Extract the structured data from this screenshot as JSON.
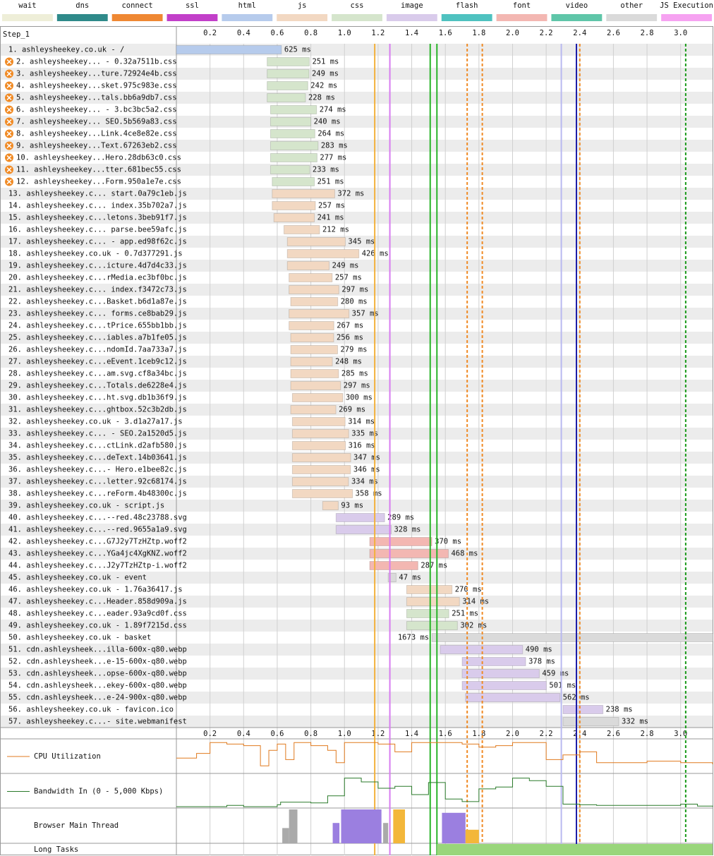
{
  "chart_data": {
    "type": "waterfall",
    "step": "Step_1",
    "legend": [
      {
        "name": "wait",
        "color": "#eeeed8"
      },
      {
        "name": "dns",
        "color": "#2f8a8a"
      },
      {
        "name": "connect",
        "color": "#ef8833"
      },
      {
        "name": "ssl",
        "color": "#c23fc9"
      },
      {
        "name": "html",
        "color": "#b6cbec"
      },
      {
        "name": "js",
        "color": "#f2d8c2"
      },
      {
        "name": "css",
        "color": "#d5e5cc"
      },
      {
        "name": "image",
        "color": "#d9cbeb"
      },
      {
        "name": "flash",
        "color": "#4fc2c0"
      },
      {
        "name": "font",
        "color": "#f3b7b2"
      },
      {
        "name": "video",
        "color": "#5fc6a9"
      },
      {
        "name": "other",
        "color": "#dadada"
      },
      {
        "name": "JS Execution",
        "color": "#f6a2f1"
      }
    ],
    "xlim": [
      0,
      3.19
    ],
    "xticks": [
      0.2,
      0.4,
      0.6,
      0.8,
      {
        "value": 1,
        "label": "1.0"
      },
      1.2,
      1.4,
      1.6,
      1.8,
      {
        "value": 2,
        "label": "2.0"
      },
      2.2,
      2.4,
      2.6,
      2.8,
      {
        "value": 3,
        "label": "3.0"
      }
    ],
    "requests": [
      {
        "label": "1. ashleysheekey.co.uk - /",
        "type": "html",
        "start": 0,
        "duration": 625,
        "time_label": "625 ms"
      },
      {
        "label": "2. ashleysheekey... - 0.32a7511b.css",
        "type": "css",
        "start": 0.54,
        "duration": 251,
        "time_label": "251 ms",
        "icon": true
      },
      {
        "label": "3. ashleysheekey...ture.72924e4b.css",
        "type": "css",
        "start": 0.54,
        "duration": 249,
        "time_label": "249 ms",
        "icon": true
      },
      {
        "label": "4. ashleysheekey...sket.975c983e.css",
        "type": "css",
        "start": 0.54,
        "duration": 242,
        "time_label": "242 ms",
        "icon": true
      },
      {
        "label": "5. ashleysheekey...tals.bb6a9db7.css",
        "type": "css",
        "start": 0.54,
        "duration": 228,
        "time_label": "228 ms",
        "icon": true
      },
      {
        "label": "6. ashleysheekey... - 3.bc3bc5a2.css",
        "type": "css",
        "start": 0.56,
        "duration": 274,
        "time_label": "274 ms",
        "icon": true
      },
      {
        "label": "7. ashleysheekey... SEO.5b569a83.css",
        "type": "css",
        "start": 0.56,
        "duration": 240,
        "time_label": "240 ms",
        "icon": true
      },
      {
        "label": "8. ashleysheekey...Link.4ce8e82e.css",
        "type": "css",
        "start": 0.56,
        "duration": 264,
        "time_label": "264 ms",
        "icon": true
      },
      {
        "label": "9. ashleysheekey...Text.67263eb2.css",
        "type": "css",
        "start": 0.56,
        "duration": 283,
        "time_label": "283 ms",
        "icon": true
      },
      {
        "label": "10. ashleysheekey...Hero.28db63c0.css",
        "type": "css",
        "start": 0.56,
        "duration": 277,
        "time_label": "277 ms",
        "icon": true
      },
      {
        "label": "11. ashleysheekey...tter.681bec55.css",
        "type": "css",
        "start": 0.56,
        "duration": 233,
        "time_label": "233 ms",
        "icon": true
      },
      {
        "label": "12. ashleysheekey...Form.950a1e7e.css",
        "type": "css",
        "start": 0.57,
        "duration": 251,
        "time_label": "251 ms",
        "icon": true
      },
      {
        "label": "13. ashleysheekey.c... start.0a79c1eb.js",
        "type": "js",
        "start": 0.57,
        "duration": 372,
        "time_label": "372 ms"
      },
      {
        "label": "14. ashleysheekey.c... index.35b702a7.js",
        "type": "js",
        "start": 0.57,
        "duration": 257,
        "time_label": "257 ms"
      },
      {
        "label": "15. ashleysheekey.c...letons.3beb91f7.js",
        "type": "js",
        "start": 0.58,
        "duration": 241,
        "time_label": "241 ms"
      },
      {
        "label": "16. ashleysheekey.c... parse.bee59afc.js",
        "type": "js",
        "start": 0.64,
        "duration": 212,
        "time_label": "212 ms"
      },
      {
        "label": "17. ashleysheekey.c... - app.ed98f62c.js",
        "type": "js",
        "start": 0.66,
        "duration": 345,
        "time_label": "345 ms"
      },
      {
        "label": "18. ashleysheekey.co.uk - 0.7d377291.js",
        "type": "js",
        "start": 0.66,
        "duration": 426,
        "time_label": "426 ms"
      },
      {
        "label": "19. ashleysheekey.c...icture.4d7d4c33.js",
        "type": "js",
        "start": 0.66,
        "duration": 249,
        "time_label": "249 ms"
      },
      {
        "label": "20. ashleysheekey.c...rMedia.ec3bf0bc.js",
        "type": "js",
        "start": 0.67,
        "duration": 257,
        "time_label": "257 ms"
      },
      {
        "label": "21. ashleysheekey.c... index.f3472c73.js",
        "type": "js",
        "start": 0.67,
        "duration": 297,
        "time_label": "297 ms"
      },
      {
        "label": "22. ashleysheekey.c...Basket.b6d1a87e.js",
        "type": "js",
        "start": 0.68,
        "duration": 280,
        "time_label": "280 ms"
      },
      {
        "label": "23. ashleysheekey.c... forms.ce8bab29.js",
        "type": "js",
        "start": 0.67,
        "duration": 357,
        "time_label": "357 ms"
      },
      {
        "label": "24. ashleysheekey.c...tPrice.655bb1bb.js",
        "type": "js",
        "start": 0.67,
        "duration": 267,
        "time_label": "267 ms"
      },
      {
        "label": "25. ashleysheekey.c...iables.a7b1fe05.js",
        "type": "js",
        "start": 0.68,
        "duration": 256,
        "time_label": "256 ms"
      },
      {
        "label": "26. ashleysheekey.c...ndomId.7aa733a7.js",
        "type": "js",
        "start": 0.68,
        "duration": 279,
        "time_label": "279 ms"
      },
      {
        "label": "27. ashleysheekey.c...eEvent.1ceb9c12.js",
        "type": "js",
        "start": 0.68,
        "duration": 248,
        "time_label": "248 ms"
      },
      {
        "label": "28. ashleysheekey.c...am.svg.cf8a34bc.js",
        "type": "js",
        "start": 0.68,
        "duration": 285,
        "time_label": "285 ms"
      },
      {
        "label": "29. ashleysheekey.c...Totals.de6228e4.js",
        "type": "js",
        "start": 0.68,
        "duration": 297,
        "time_label": "297 ms"
      },
      {
        "label": "30. ashleysheekey.c...ht.svg.db1b36f9.js",
        "type": "js",
        "start": 0.69,
        "duration": 300,
        "time_label": "300 ms"
      },
      {
        "label": "31. ashleysheekey.c...ghtbox.52c3b2db.js",
        "type": "js",
        "start": 0.68,
        "duration": 269,
        "time_label": "269 ms"
      },
      {
        "label": "32. ashleysheekey.co.uk - 3.d1a27a17.js",
        "type": "js",
        "start": 0.69,
        "duration": 314,
        "time_label": "314 ms"
      },
      {
        "label": "33. ashleysheekey.c... - SEO.2a1520d5.js",
        "type": "js",
        "start": 0.69,
        "duration": 335,
        "time_label": "335 ms"
      },
      {
        "label": "34. ashleysheekey.c...ctLink.d2afb580.js",
        "type": "js",
        "start": 0.69,
        "duration": 316,
        "time_label": "316 ms"
      },
      {
        "label": "35. ashleysheekey.c...deText.14b03641.js",
        "type": "js",
        "start": 0.69,
        "duration": 347,
        "time_label": "347 ms"
      },
      {
        "label": "36. ashleysheekey.c...- Hero.e1bee82c.js",
        "type": "js",
        "start": 0.69,
        "duration": 346,
        "time_label": "346 ms"
      },
      {
        "label": "37. ashleysheekey.c...letter.92c68174.js",
        "type": "js",
        "start": 0.69,
        "duration": 334,
        "time_label": "334 ms"
      },
      {
        "label": "38. ashleysheekey.c...reForm.4b48300c.js",
        "type": "js",
        "start": 0.69,
        "duration": 358,
        "time_label": "358 ms"
      },
      {
        "label": "39. ashleysheekey.co.uk - script.js",
        "type": "js",
        "start": 0.87,
        "duration": 93,
        "time_label": "93 ms"
      },
      {
        "label": "40. ashleysheekey.c...--red.48c23788.svg",
        "type": "image",
        "start": 0.95,
        "duration": 289,
        "time_label": "289 ms"
      },
      {
        "label": "41. ashleysheekey.c...--red.9655a1a9.svg",
        "type": "image",
        "start": 0.95,
        "duration": 328,
        "time_label": "328 ms"
      },
      {
        "label": "42. ashleysheekey.c...G7J2y7TzHZtp.woff2",
        "type": "font",
        "start": 1.15,
        "duration": 370,
        "time_label": "370 ms"
      },
      {
        "label": "43. ashleysheekey.c...YGa4jc4XgKNZ.woff2",
        "type": "font",
        "start": 1.15,
        "duration": 468,
        "time_label": "468 ms"
      },
      {
        "label": "44. ashleysheekey.c...J2y7TzHZtp-i.woff2",
        "type": "font",
        "start": 1.15,
        "duration": 287,
        "time_label": "287 ms"
      },
      {
        "label": "45. ashleysheekey.co.uk - event",
        "type": "other",
        "start": 1.26,
        "duration": 47,
        "time_label": "47 ms"
      },
      {
        "label": "46. ashleysheekey.co.uk - 1.76a36417.js",
        "type": "js",
        "start": 1.37,
        "duration": 270,
        "time_label": "270 ms"
      },
      {
        "label": "47. ashleysheekey.c...Header.858d909a.js",
        "type": "js",
        "start": 1.37,
        "duration": 314,
        "time_label": "314 ms"
      },
      {
        "label": "48. ashleysheekey.c...eader.93a9cd0f.css",
        "type": "css",
        "start": 1.37,
        "duration": 251,
        "time_label": "251 ms"
      },
      {
        "label": "49. ashleysheekey.co.uk - 1.89f7215d.css",
        "type": "css",
        "start": 1.37,
        "duration": 302,
        "time_label": "302 ms"
      },
      {
        "label": "50. ashleysheekey.co.uk - basket",
        "type": "other",
        "start": 1.52,
        "duration": 1673,
        "time_label": "1673 ms"
      },
      {
        "label": "51. cdn.ashleysheek...illa-600x-q80.webp",
        "type": "image",
        "start": 1.57,
        "duration": 490,
        "time_label": "490 ms"
      },
      {
        "label": "52. cdn.ashleysheek...e-15-600x-q80.webp",
        "type": "image",
        "start": 1.7,
        "duration": 378,
        "time_label": "378 ms"
      },
      {
        "label": "53. cdn.ashleysheek...opse-600x-q80.webp",
        "type": "image",
        "start": 1.7,
        "duration": 459,
        "time_label": "459 ms"
      },
      {
        "label": "54. cdn.ashleysheek...ekey-600x-q80.webp",
        "type": "image",
        "start": 1.7,
        "duration": 501,
        "time_label": "501 ms"
      },
      {
        "label": "55. cdn.ashleysheek...e-24-900x-q80.webp",
        "type": "image",
        "start": 1.72,
        "duration": 562,
        "time_label": "562 ms"
      },
      {
        "label": "56. ashleysheekey.co.uk - favicon.ico",
        "type": "image",
        "start": 2.3,
        "duration": 238,
        "time_label": "238 ms"
      },
      {
        "label": "57. ashleysheekey.c...- site.webmanifest",
        "type": "other",
        "start": 2.3,
        "duration": 332,
        "time_label": "332 ms"
      }
    ],
    "event_lines": [
      {
        "time": 1.18,
        "color": "#f2b13b",
        "dashed": false
      },
      {
        "time": 1.27,
        "color": "#d77cf0",
        "dashed": false
      },
      {
        "time": 1.51,
        "color": "#28b428",
        "dashed": false
      },
      {
        "time": 1.55,
        "color": "#28b428",
        "dashed": false
      },
      {
        "time": 1.73,
        "color": "#f08a24",
        "dashed": true
      },
      {
        "time": 1.82,
        "color": "#f08a24",
        "dashed": true
      },
      {
        "time": 2.29,
        "color": "#b9b9f0",
        "dashed": false
      },
      {
        "time": 2.38,
        "color": "#1c1ca8",
        "dashed": false
      },
      {
        "time": 2.4,
        "color": "#f08a24",
        "dashed": true
      },
      {
        "time": 3.03,
        "color": "#1a9a1a",
        "dashed": true
      }
    ],
    "cpu": {
      "label": "CPU Utilization",
      "color": "#e07a1f",
      "ylim": [
        0,
        100
      ],
      "x": [
        0,
        0.08,
        0.12,
        0.2,
        0.3,
        0.4,
        0.5,
        0.55,
        0.6,
        0.65,
        0.7,
        0.8,
        0.9,
        0.95,
        1.0,
        1.1,
        1.2,
        1.3,
        1.4,
        1.5,
        1.6,
        1.7,
        1.8,
        1.9,
        2.0,
        2.1,
        2.2,
        2.3,
        2.4,
        2.5,
        2.6,
        2.8,
        3.0,
        3.19
      ],
      "values": [
        45,
        45,
        60,
        95,
        90,
        85,
        20,
        70,
        90,
        40,
        95,
        85,
        70,
        30,
        95,
        95,
        90,
        65,
        95,
        95,
        95,
        90,
        80,
        85,
        95,
        95,
        40,
        55,
        65,
        30,
        30,
        35,
        30,
        25
      ]
    },
    "bandwidth": {
      "label": "Bandwidth In (0 - 5,000 Kbps)",
      "color": "#2a7a2a",
      "ylim": [
        0,
        5000
      ],
      "x": [
        0,
        0.3,
        0.4,
        0.6,
        0.62,
        0.8,
        0.9,
        1.0,
        1.1,
        1.2,
        1.3,
        1.4,
        1.5,
        1.6,
        1.7,
        1.8,
        1.9,
        2.0,
        2.1,
        2.2,
        2.3,
        2.4,
        2.5,
        3.0,
        3.1,
        3.19
      ],
      "values": [
        100,
        300,
        100,
        400,
        800,
        700,
        1800,
        4600,
        4000,
        3000,
        3300,
        2000,
        3900,
        1300,
        900,
        2900,
        3200,
        4600,
        4200,
        3300,
        500,
        400,
        300,
        500,
        200,
        100
      ]
    },
    "main_thread": {
      "label": "Browser Main Thread",
      "blocks": [
        {
          "start": 0.63,
          "end": 0.67,
          "level": 45,
          "color": "#aaaaaa"
        },
        {
          "start": 0.67,
          "end": 0.72,
          "level": 100,
          "color": "#aaaaaa"
        },
        {
          "start": 0.93,
          "end": 0.97,
          "level": 60,
          "color": "#9b7fe0"
        },
        {
          "start": 0.98,
          "end": 1.22,
          "level": 100,
          "color": "#9b7fe0"
        },
        {
          "start": 1.23,
          "end": 1.26,
          "level": 60,
          "color": "#aaaaaa"
        },
        {
          "start": 1.29,
          "end": 1.36,
          "level": 100,
          "color": "#f3b73a"
        },
        {
          "start": 1.58,
          "end": 1.72,
          "level": 90,
          "color": "#9b7fe0"
        },
        {
          "start": 1.72,
          "end": 1.8,
          "level": 40,
          "color": "#f3b73a"
        }
      ]
    },
    "long_tasks": {
      "label": "Long Tasks",
      "color": "#99d67b",
      "start": 1.55,
      "end": 3.19
    }
  }
}
